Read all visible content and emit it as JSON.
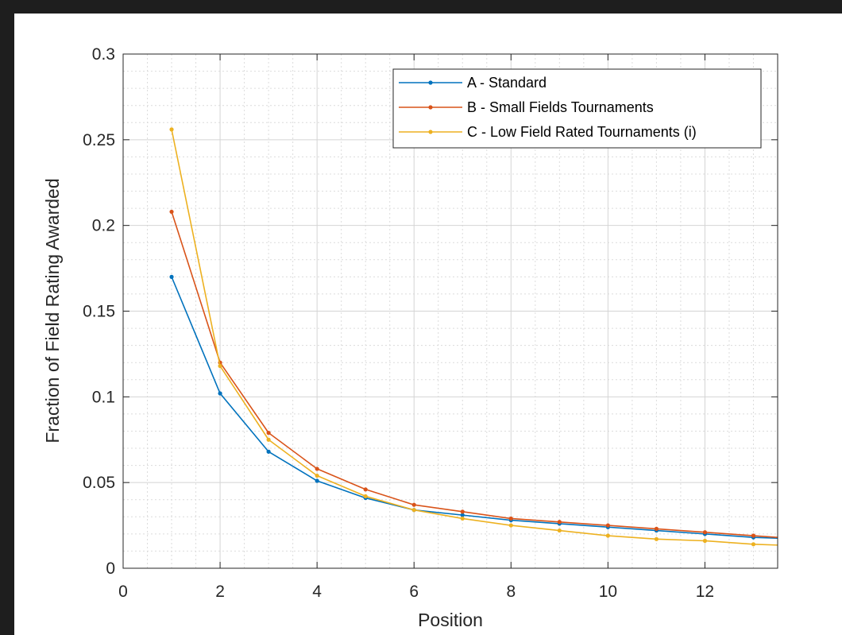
{
  "chart_data": {
    "type": "line",
    "xlabel": "Position",
    "ylabel": "Fraction of Field Rating Awarded",
    "xlim": [
      0,
      13.5
    ],
    "ylim": [
      0,
      0.3
    ],
    "xticks": [
      0,
      2,
      4,
      6,
      8,
      10,
      12
    ],
    "yticks": [
      0,
      0.05,
      0.1,
      0.15,
      0.2,
      0.25,
      0.3
    ],
    "xtick_labels": [
      "0",
      "2",
      "4",
      "6",
      "8",
      "10",
      "12"
    ],
    "ytick_labels": [
      "0",
      "0.05",
      "0.1",
      "0.15",
      "0.2",
      "0.25",
      "0.3"
    ],
    "grid": true,
    "minor_grid": true,
    "legend_position": "top-right",
    "series": [
      {
        "name": "A - Standard",
        "color": "#0072BD",
        "x": [
          1,
          2,
          3,
          4,
          5,
          6,
          7,
          8,
          9,
          10,
          11,
          12,
          13,
          14
        ],
        "values": [
          0.17,
          0.102,
          0.068,
          0.051,
          0.041,
          0.034,
          0.031,
          0.028,
          0.026,
          0.024,
          0.022,
          0.02,
          0.018,
          0.017
        ]
      },
      {
        "name": "B - Small Fields Tournaments",
        "color": "#D95319",
        "x": [
          1,
          2,
          3,
          4,
          5,
          6,
          7,
          8,
          9,
          10,
          11,
          12,
          13,
          14
        ],
        "values": [
          0.208,
          0.12,
          0.079,
          0.058,
          0.046,
          0.037,
          0.033,
          0.029,
          0.027,
          0.025,
          0.023,
          0.021,
          0.019,
          0.017
        ]
      },
      {
        "name": "C - Low Field Rated Tournaments (i)",
        "color": "#EDB120",
        "x": [
          1,
          2,
          3,
          4,
          5,
          6,
          7,
          8,
          9,
          10,
          11,
          12,
          13,
          14
        ],
        "values": [
          0.256,
          0.118,
          0.075,
          0.054,
          0.042,
          0.034,
          0.029,
          0.025,
          0.022,
          0.019,
          0.017,
          0.016,
          0.014,
          0.013
        ]
      }
    ]
  }
}
